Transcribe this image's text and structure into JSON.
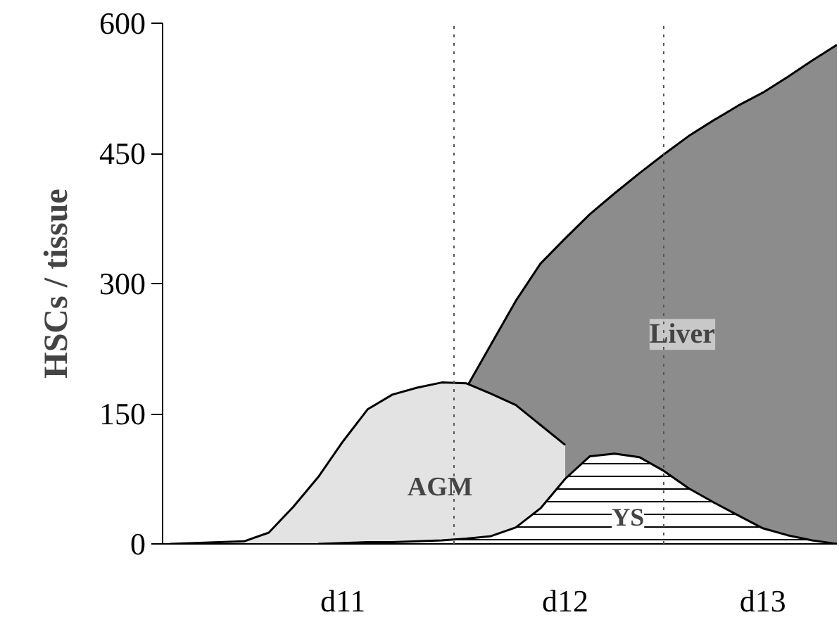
{
  "chart_data": {
    "type": "area",
    "ylabel": "HSCs / tissue",
    "categories": [
      null,
      null,
      null,
      null,
      null,
      null,
      null,
      "d11",
      null,
      null,
      null,
      null,
      null,
      null,
      null,
      null,
      "d12",
      null,
      null,
      null,
      null,
      null,
      null,
      null,
      "d13",
      null,
      null,
      null
    ],
    "ylim": [
      0,
      600
    ],
    "yticks": [
      0,
      150,
      300,
      450,
      600
    ],
    "grid": "x",
    "series": [
      {
        "name": "Liver",
        "color": "#8c8c8c",
        "values": [
          null,
          null,
          null,
          null,
          null,
          null,
          null,
          null,
          null,
          null,
          null,
          null,
          180,
          230,
          280,
          323,
          352,
          380,
          404,
          427,
          449,
          470,
          488,
          505,
          520,
          538,
          557,
          575
        ]
      },
      {
        "name": "AGM",
        "color": "#e3e3e3",
        "values": [
          0,
          1,
          2,
          3,
          13,
          43,
          77,
          118,
          155,
          172,
          180,
          186,
          185,
          173,
          160,
          137,
          114,
          null,
          null,
          null,
          null,
          null,
          null,
          null,
          null,
          null,
          null,
          null
        ]
      },
      {
        "name": "YS",
        "color": "#ffffff",
        "values": [
          null,
          null,
          null,
          null,
          null,
          null,
          0,
          1,
          2,
          2,
          3,
          4,
          6,
          9,
          19,
          41,
          75,
          101,
          104,
          100,
          84,
          64,
          48,
          33,
          18,
          10,
          4,
          0
        ]
      }
    ]
  }
}
